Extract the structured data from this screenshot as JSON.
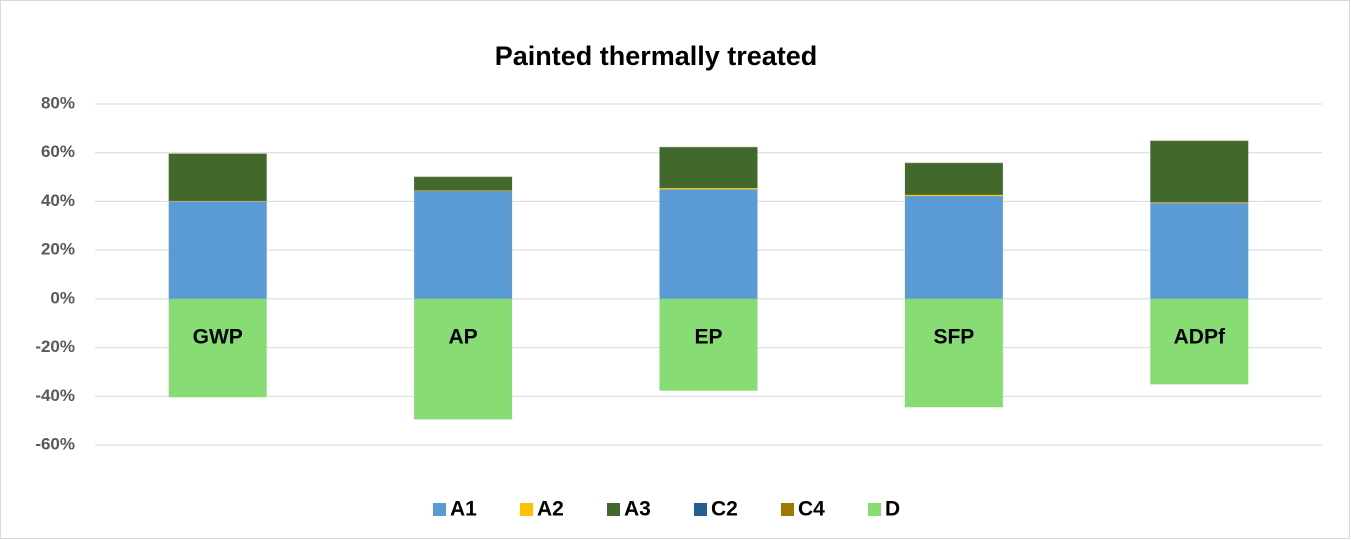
{
  "chart_data": {
    "type": "stacked_bar",
    "title": "Painted thermally treated",
    "categories": [
      "GWP",
      "AP",
      "EP",
      "SFP",
      "ADPf"
    ],
    "series": [
      {
        "name": "A1",
        "color": "#5b9bd5",
        "values": [
          40,
          44.3,
          45,
          42.2,
          39.3
        ]
      },
      {
        "name": "A2",
        "color": "#ffc000",
        "values": [
          0.2,
          0.2,
          0.5,
          0.5,
          0.3
        ]
      },
      {
        "name": "A3",
        "color": "#43682b",
        "values": [
          19.3,
          5.5,
          16.7,
          13,
          25.2
        ]
      },
      {
        "name": "C2",
        "color": "#255e91",
        "values": [
          0.1,
          0.1,
          0.1,
          0.1,
          0.1
        ]
      },
      {
        "name": "C4",
        "color": "#9e7b00",
        "values": [
          0.1,
          0.1,
          0.1,
          0.1,
          0.1
        ]
      },
      {
        "name": "D",
        "color": "#87dc73",
        "values": [
          -40.4,
          -49.5,
          -37.7,
          -44.5,
          -35.1
        ]
      }
    ],
    "ylim": [
      -60,
      80
    ],
    "yticks": [
      {
        "value": -60,
        "label": "-60%"
      },
      {
        "value": -40,
        "label": "-40%"
      },
      {
        "value": -20,
        "label": "-20%"
      },
      {
        "value": 0,
        "label": "0%"
      },
      {
        "value": 20,
        "label": "20%"
      },
      {
        "value": 40,
        "label": "40%"
      },
      {
        "value": 60,
        "label": "60%"
      },
      {
        "value": 80,
        "label": "80%"
      }
    ],
    "grid": true,
    "legend": "bottom"
  }
}
